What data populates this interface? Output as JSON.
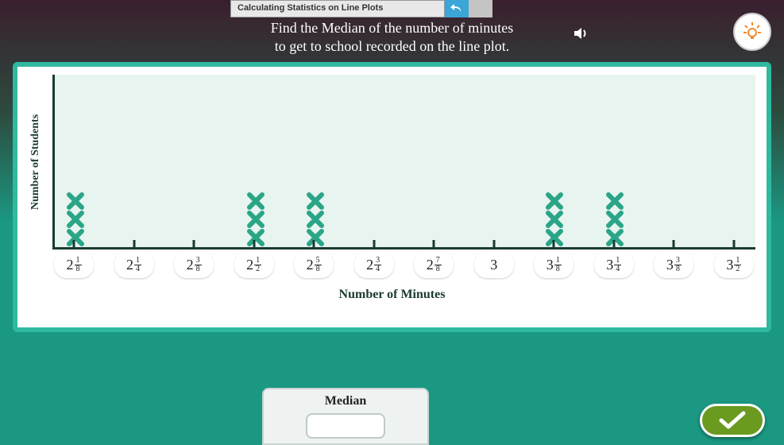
{
  "header": {
    "title": "Calculating Statistics on Line Plots",
    "instruction_line1": "Find the Median of the number of minutes",
    "instruction_line2": "to get to school recorded on the line plot."
  },
  "chart": {
    "type": "line-plot",
    "ylabel": "Number of Students",
    "xlabel": "Number of Minutes",
    "background_color": "#e8f4f0",
    "axis_color": "#1a3a32",
    "mark_color": "#2aa587",
    "ticks": [
      {
        "whole": "2",
        "num": "1",
        "den": "8",
        "count": 3
      },
      {
        "whole": "2",
        "num": "1",
        "den": "4",
        "count": 0
      },
      {
        "whole": "2",
        "num": "3",
        "den": "8",
        "count": 0
      },
      {
        "whole": "2",
        "num": "1",
        "den": "2",
        "count": 3
      },
      {
        "whole": "2",
        "num": "5",
        "den": "8",
        "count": 3
      },
      {
        "whole": "2",
        "num": "3",
        "den": "4",
        "count": 0
      },
      {
        "whole": "2",
        "num": "7",
        "den": "8",
        "count": 0
      },
      {
        "whole": "3",
        "num": "",
        "den": "",
        "count": 0
      },
      {
        "whole": "3",
        "num": "1",
        "den": "8",
        "count": 3
      },
      {
        "whole": "3",
        "num": "1",
        "den": "4",
        "count": 3
      },
      {
        "whole": "3",
        "num": "3",
        "den": "8",
        "count": 0
      },
      {
        "whole": "3",
        "num": "1",
        "den": "2",
        "count": 0
      }
    ]
  },
  "answer": {
    "label": "Median",
    "value": ""
  },
  "colors": {
    "card_border": "#2fb9a0",
    "submit_bg": "#6a9a1f",
    "hint_accent": "#f08c2e"
  }
}
